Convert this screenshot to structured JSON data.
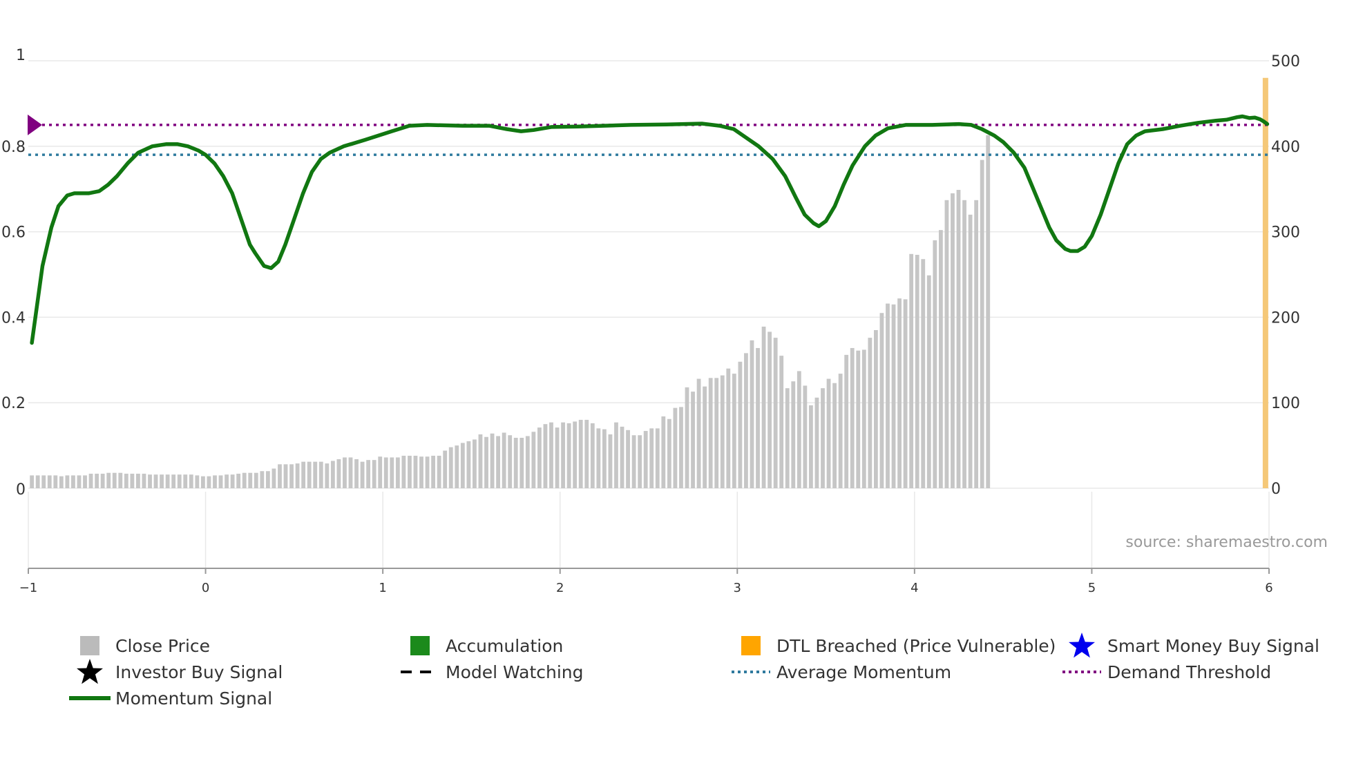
{
  "chart_data": {
    "type": "bar+line",
    "title": "",
    "source": "source: sharemaestro.com",
    "x_axis": {
      "ticks": [
        "−1",
        "0",
        "1",
        "2",
        "3",
        "4",
        "5",
        "6"
      ],
      "range": [
        -1,
        6
      ]
    },
    "y_left": {
      "ticks": [
        "0",
        "0.2",
        "0.4",
        "0.6",
        "0.8",
        "1"
      ],
      "range": [
        0,
        1
      ]
    },
    "y_right": {
      "ticks": [
        "0",
        "100",
        "200",
        "300",
        "400",
        "500"
      ],
      "range": [
        0,
        500
      ]
    },
    "average_momentum": 0.78,
    "demand_threshold": 0.85,
    "dtl_breached_at": 5.98,
    "close_price": {
      "start_x": -0.98,
      "step_x": 0.0333,
      "values": [
        15,
        15,
        15,
        15,
        15,
        14,
        15,
        15,
        15,
        15,
        17,
        17,
        17,
        18,
        18,
        18,
        17,
        17,
        17,
        17,
        16,
        16,
        16,
        16,
        16,
        16,
        16,
        16,
        15,
        14,
        14,
        15,
        15,
        16,
        16,
        17,
        18,
        18,
        18,
        20,
        20,
        23,
        28,
        28,
        28,
        29,
        31,
        31,
        31,
        31,
        29,
        32,
        34,
        36,
        36,
        34,
        31,
        33,
        33,
        37,
        36,
        36,
        36,
        38,
        38,
        38,
        37,
        37,
        38,
        38,
        44,
        48,
        50,
        53,
        55,
        57,
        63,
        60,
        64,
        61,
        65,
        62,
        59,
        59,
        61,
        66,
        71,
        75,
        77,
        71,
        77,
        76,
        78,
        80,
        80,
        76,
        70,
        69,
        63,
        77,
        72,
        68,
        62,
        62,
        67,
        70,
        70,
        84,
        81,
        94,
        95,
        118,
        113,
        128,
        119,
        129,
        129,
        132,
        140,
        134,
        148,
        158,
        173,
        164,
        189,
        183,
        176,
        155,
        117,
        125,
        137,
        120,
        97,
        106,
        117,
        128,
        123,
        134,
        156,
        164,
        161,
        162,
        176,
        185,
        205,
        216,
        215,
        222,
        221,
        274,
        273,
        268,
        249,
        290,
        302,
        337,
        345,
        349,
        337,
        320,
        337,
        384,
        413
      ]
    },
    "momentum_signal": {
      "points": [
        [
          -0.98,
          0.34
        ],
        [
          -0.92,
          0.52
        ],
        [
          -0.87,
          0.61
        ],
        [
          -0.83,
          0.66
        ],
        [
          -0.78,
          0.685
        ],
        [
          -0.74,
          0.69
        ],
        [
          -0.66,
          0.69
        ],
        [
          -0.6,
          0.695
        ],
        [
          -0.55,
          0.71
        ],
        [
          -0.5,
          0.73
        ],
        [
          -0.44,
          0.76
        ],
        [
          -0.38,
          0.785
        ],
        [
          -0.3,
          0.8
        ],
        [
          -0.22,
          0.805
        ],
        [
          -0.16,
          0.805
        ],
        [
          -0.1,
          0.8
        ],
        [
          -0.04,
          0.79
        ],
        [
          0.0,
          0.78
        ],
        [
          0.05,
          0.76
        ],
        [
          0.1,
          0.73
        ],
        [
          0.15,
          0.69
        ],
        [
          0.2,
          0.63
        ],
        [
          0.25,
          0.57
        ],
        [
          0.28,
          0.55
        ],
        [
          0.33,
          0.52
        ],
        [
          0.37,
          0.515
        ],
        [
          0.41,
          0.53
        ],
        [
          0.45,
          0.57
        ],
        [
          0.5,
          0.63
        ],
        [
          0.55,
          0.69
        ],
        [
          0.6,
          0.74
        ],
        [
          0.65,
          0.77
        ],
        [
          0.7,
          0.785
        ],
        [
          0.78,
          0.8
        ],
        [
          0.9,
          0.815
        ],
        [
          1.05,
          0.835
        ],
        [
          1.15,
          0.848
        ],
        [
          1.25,
          0.85
        ],
        [
          1.45,
          0.848
        ],
        [
          1.6,
          0.848
        ],
        [
          1.7,
          0.84
        ],
        [
          1.78,
          0.835
        ],
        [
          1.85,
          0.838
        ],
        [
          1.95,
          0.845
        ],
        [
          2.1,
          0.846
        ],
        [
          2.4,
          0.85
        ],
        [
          2.6,
          0.851
        ],
        [
          2.8,
          0.853
        ],
        [
          2.9,
          0.848
        ],
        [
          2.98,
          0.84
        ],
        [
          3.05,
          0.82
        ],
        [
          3.12,
          0.8
        ],
        [
          3.2,
          0.77
        ],
        [
          3.27,
          0.73
        ],
        [
          3.33,
          0.68
        ],
        [
          3.38,
          0.64
        ],
        [
          3.43,
          0.62
        ],
        [
          3.46,
          0.613
        ],
        [
          3.5,
          0.625
        ],
        [
          3.55,
          0.66
        ],
        [
          3.6,
          0.71
        ],
        [
          3.65,
          0.755
        ],
        [
          3.72,
          0.8
        ],
        [
          3.78,
          0.825
        ],
        [
          3.85,
          0.842
        ],
        [
          3.95,
          0.85
        ],
        [
          4.1,
          0.85
        ],
        [
          4.25,
          0.852
        ],
        [
          4.32,
          0.85
        ],
        [
          4.38,
          0.84
        ],
        [
          4.45,
          0.825
        ],
        [
          4.5,
          0.81
        ],
        [
          4.56,
          0.785
        ],
        [
          4.62,
          0.75
        ],
        [
          4.67,
          0.7
        ],
        [
          4.72,
          0.65
        ],
        [
          4.76,
          0.61
        ],
        [
          4.8,
          0.58
        ],
        [
          4.85,
          0.56
        ],
        [
          4.88,
          0.555
        ],
        [
          4.92,
          0.555
        ],
        [
          4.96,
          0.565
        ],
        [
          5.0,
          0.59
        ],
        [
          5.05,
          0.64
        ],
        [
          5.1,
          0.7
        ],
        [
          5.15,
          0.76
        ],
        [
          5.2,
          0.805
        ],
        [
          5.25,
          0.825
        ],
        [
          5.3,
          0.835
        ],
        [
          5.4,
          0.84
        ],
        [
          5.5,
          0.848
        ],
        [
          5.6,
          0.855
        ],
        [
          5.7,
          0.86
        ],
        [
          5.76,
          0.862
        ],
        [
          5.82,
          0.868
        ],
        [
          5.85,
          0.87
        ],
        [
          5.89,
          0.866
        ],
        [
          5.92,
          0.867
        ],
        [
          5.95,
          0.863
        ],
        [
          5.97,
          0.858
        ],
        [
          5.99,
          0.852
        ]
      ]
    },
    "legend": [
      {
        "label": "Close Price",
        "symbol": "square",
        "color": "#bbbbbb"
      },
      {
        "label": "Accumulation",
        "symbol": "square",
        "color": "#1b8a1b"
      },
      {
        "label": "DTL Breached (Price Vulnerable)",
        "symbol": "square",
        "color": "#ffa500"
      },
      {
        "label": "Smart Money Buy Signal",
        "symbol": "star",
        "color": "#0000ee"
      },
      {
        "label": "Investor Buy Signal",
        "symbol": "star",
        "color": "#000000"
      },
      {
        "label": "Model Watching",
        "symbol": "dash",
        "color": "#000000"
      },
      {
        "label": "Average Momentum",
        "symbol": "dot",
        "color": "#2f7a9e"
      },
      {
        "label": "Demand Threshold",
        "symbol": "dot",
        "color": "#800080"
      },
      {
        "label": "Momentum Signal",
        "symbol": "line",
        "color": "#117711"
      }
    ],
    "colors": {
      "close_price": "#c6c6c6",
      "momentum": "#117711",
      "average": "#2f7a9e",
      "threshold": "#800080",
      "dtl": "#f5c878",
      "grid": "#e8e8e8",
      "axis": "#999999"
    }
  }
}
